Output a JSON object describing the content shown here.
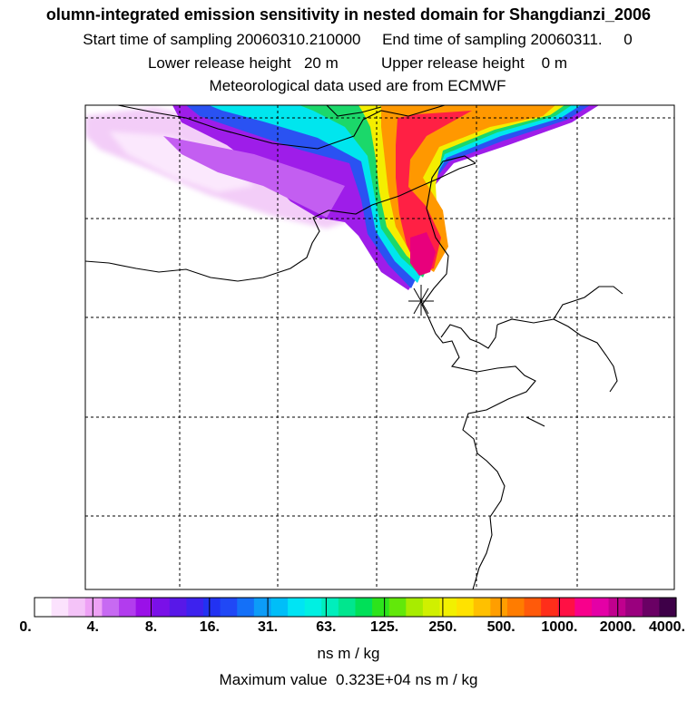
{
  "header": {
    "title": "olumn-integrated emission sensitivity in nested domain for Shangdianzi_2006",
    "sampling": "Start time of sampling 20060310.210000     End time of sampling 20060311.     0",
    "release": "Lower release height   20 m          Upper release height    0 m",
    "met": "Meteorological data used are from ECMWF"
  },
  "map": {
    "station": "Shangdianzi_2006",
    "plume_colors": {
      "low": "#f2c6f7",
      "violet": "#9b18e8",
      "blue": "#2a5cf5",
      "cyan": "#00e8ee",
      "green": "#1ad86a",
      "yellow": "#f6f200",
      "orange": "#ff9a00",
      "red": "#ff1f3c",
      "peak": "#e7007a"
    }
  },
  "colorbar": {
    "colors": [
      "#ffffff",
      "#fbe2fd",
      "#f4c3f8",
      "#eea1f5",
      "#c76af2",
      "#b23cee",
      "#9a10e8",
      "#7a10e8",
      "#5818e8",
      "#3d22ee",
      "#2232f2",
      "#2048f6",
      "#1470f8",
      "#0c9cf8",
      "#00bef8",
      "#00e4f4",
      "#00f0e2",
      "#00eebc",
      "#00e68e",
      "#00e058",
      "#2ce41c",
      "#62e80a",
      "#a8ec00",
      "#d0f000",
      "#f2f000",
      "#ffe200",
      "#ffc000",
      "#ff9e00",
      "#ff7c00",
      "#ff5a0a",
      "#ff2e1a",
      "#ff1044",
      "#f8008c",
      "#e400a6",
      "#c0008e",
      "#9a007e",
      "#6a0064",
      "#3e0048"
    ],
    "labels": [
      "0.",
      "4.",
      "8.",
      "16.",
      "31.",
      "63.",
      "125.",
      "250.",
      "500.",
      "1000.",
      "2000.",
      "4000."
    ],
    "units": "ns m / kg",
    "max_value": "Maximum value  0.323E+04 ns m / kg"
  }
}
